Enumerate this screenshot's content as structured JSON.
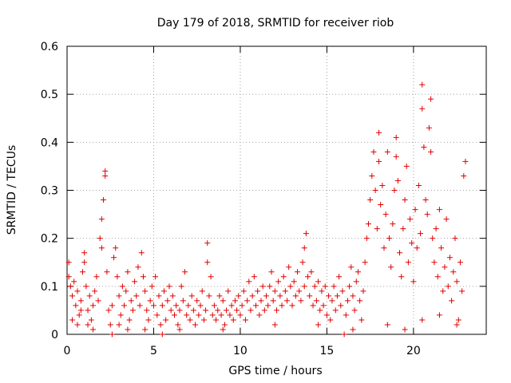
{
  "chart_data": {
    "type": "scatter",
    "title": "Day 179 of 2018, SRMTID for receiver riob",
    "xlabel": "GPS time / hours",
    "ylabel": "SRMTID / TECUs",
    "xlim": [
      0,
      24.2
    ],
    "ylim": [
      0,
      0.6
    ],
    "xticks": [
      0,
      5,
      10,
      15,
      20
    ],
    "yticks": [
      0,
      0.1,
      0.2,
      0.3,
      0.4,
      0.5,
      0.6
    ],
    "grid": true,
    "marker": "+",
    "color": "#e00000",
    "series": [
      {
        "name": "riob",
        "points": [
          [
            0.1,
            0.15
          ],
          [
            0.1,
            0.12
          ],
          [
            0.2,
            0.1
          ],
          [
            0.3,
            0.08
          ],
          [
            0.4,
            0.11
          ],
          [
            0.5,
            0.06
          ],
          [
            0.6,
            0.09
          ],
          [
            0.7,
            0.04
          ],
          [
            0.8,
            0.07
          ],
          [
            0.9,
            0.13
          ],
          [
            1.0,
            0.17
          ],
          [
            1.0,
            0.15
          ],
          [
            1.1,
            0.1
          ],
          [
            1.2,
            0.05
          ],
          [
            1.3,
            0.08
          ],
          [
            1.4,
            0.03
          ],
          [
            1.5,
            0.06
          ],
          [
            1.6,
            0.09
          ],
          [
            1.7,
            0.12
          ],
          [
            1.8,
            0.07
          ],
          [
            1.9,
            0.2
          ],
          [
            2.0,
            0.24
          ],
          [
            2.0,
            0.18
          ],
          [
            2.1,
            0.28
          ],
          [
            2.2,
            0.34
          ],
          [
            2.2,
            0.33
          ],
          [
            2.3,
            0.13
          ],
          [
            2.4,
            0.05
          ],
          [
            2.5,
            0.02
          ],
          [
            2.6,
            0.06
          ],
          [
            2.7,
            0.16
          ],
          [
            2.8,
            0.18
          ],
          [
            2.9,
            0.12
          ],
          [
            3.0,
            0.08
          ],
          [
            3.1,
            0.04
          ],
          [
            3.2,
            0.1
          ],
          [
            3.3,
            0.06
          ],
          [
            3.4,
            0.09
          ],
          [
            3.5,
            0.13
          ],
          [
            3.6,
            0.03
          ],
          [
            3.7,
            0.07
          ],
          [
            3.8,
            0.05
          ],
          [
            3.9,
            0.11
          ],
          [
            4.0,
            0.08
          ],
          [
            4.1,
            0.14
          ],
          [
            4.2,
            0.06
          ],
          [
            4.3,
            0.17
          ],
          [
            4.4,
            0.12
          ],
          [
            4.5,
            0.09
          ],
          [
            4.6,
            0.05
          ],
          [
            4.7,
            0.03
          ],
          [
            4.8,
            0.07
          ],
          [
            4.9,
            0.1
          ],
          [
            5.0,
            0.06
          ],
          [
            5.1,
            0.12
          ],
          [
            5.2,
            0.04
          ],
          [
            5.3,
            0.08
          ],
          [
            5.4,
            0.02
          ],
          [
            5.5,
            0.06
          ],
          [
            5.6,
            0.09
          ],
          [
            5.7,
            0.03
          ],
          [
            5.8,
            0.07
          ],
          [
            5.9,
            0.1
          ],
          [
            6.0,
            0.05
          ],
          [
            6.1,
            0.08
          ],
          [
            6.2,
            0.04
          ],
          [
            6.3,
            0.06
          ],
          [
            6.4,
            0.02
          ],
          [
            6.5,
            0.05
          ],
          [
            6.6,
            0.1
          ],
          [
            6.7,
            0.07
          ],
          [
            6.8,
            0.13
          ],
          [
            6.9,
            0.04
          ],
          [
            7.0,
            0.06
          ],
          [
            7.1,
            0.03
          ],
          [
            7.2,
            0.08
          ],
          [
            7.3,
            0.05
          ],
          [
            7.4,
            0.02
          ],
          [
            7.5,
            0.07
          ],
          [
            7.6,
            0.04
          ],
          [
            7.7,
            0.06
          ],
          [
            7.8,
            0.09
          ],
          [
            7.9,
            0.03
          ],
          [
            8.0,
            0.05
          ],
          [
            8.1,
            0.19
          ],
          [
            8.1,
            0.15
          ],
          [
            8.2,
            0.08
          ],
          [
            8.3,
            0.12
          ],
          [
            8.4,
            0.04
          ],
          [
            8.5,
            0.06
          ],
          [
            8.6,
            0.03
          ],
          [
            8.7,
            0.05
          ],
          [
            8.8,
            0.08
          ],
          [
            8.9,
            0.04
          ],
          [
            9.0,
            0.07
          ],
          [
            9.1,
            0.02
          ],
          [
            9.2,
            0.05
          ],
          [
            9.3,
            0.09
          ],
          [
            9.4,
            0.04
          ],
          [
            9.5,
            0.06
          ],
          [
            9.6,
            0.03
          ],
          [
            9.7,
            0.07
          ],
          [
            9.8,
            0.05
          ],
          [
            9.9,
            0.08
          ],
          [
            10.0,
            0.04
          ],
          [
            10.1,
            0.06
          ],
          [
            10.2,
            0.09
          ],
          [
            10.3,
            0.03
          ],
          [
            10.4,
            0.07
          ],
          [
            10.5,
            0.11
          ],
          [
            10.6,
            0.05
          ],
          [
            10.7,
            0.08
          ],
          [
            10.8,
            0.12
          ],
          [
            10.9,
            0.06
          ],
          [
            11.0,
            0.09
          ],
          [
            11.1,
            0.04
          ],
          [
            11.2,
            0.07
          ],
          [
            11.3,
            0.1
          ],
          [
            11.4,
            0.05
          ],
          [
            11.5,
            0.08
          ],
          [
            11.6,
            0.06
          ],
          [
            11.7,
            0.1
          ],
          [
            11.8,
            0.13
          ],
          [
            11.9,
            0.07
          ],
          [
            12.0,
            0.09
          ],
          [
            12.1,
            0.05
          ],
          [
            12.2,
            0.11
          ],
          [
            12.3,
            0.08
          ],
          [
            12.4,
            0.06
          ],
          [
            12.5,
            0.12
          ],
          [
            12.6,
            0.09
          ],
          [
            12.7,
            0.07
          ],
          [
            12.8,
            0.14
          ],
          [
            12.9,
            0.1
          ],
          [
            13.0,
            0.06
          ],
          [
            13.1,
            0.11
          ],
          [
            13.2,
            0.08
          ],
          [
            13.3,
            0.13
          ],
          [
            13.4,
            0.09
          ],
          [
            13.5,
            0.07
          ],
          [
            13.6,
            0.15
          ],
          [
            13.7,
            0.18
          ],
          [
            13.7,
            0.1
          ],
          [
            13.8,
            0.21
          ],
          [
            13.9,
            0.12
          ],
          [
            14.0,
            0.08
          ],
          [
            14.1,
            0.13
          ],
          [
            14.2,
            0.06
          ],
          [
            14.3,
            0.1
          ],
          [
            14.4,
            0.07
          ],
          [
            14.5,
            0.11
          ],
          [
            14.6,
            0.05
          ],
          [
            14.7,
            0.09
          ],
          [
            14.8,
            0.06
          ],
          [
            14.9,
            0.1
          ],
          [
            15.0,
            0.04
          ],
          [
            15.1,
            0.08
          ],
          [
            15.2,
            0.03
          ],
          [
            15.3,
            0.07
          ],
          [
            15.4,
            0.1
          ],
          [
            15.5,
            0.05
          ],
          [
            15.6,
            0.08
          ],
          [
            15.7,
            0.12
          ],
          [
            15.8,
            0.06
          ],
          [
            15.9,
            0.09
          ],
          [
            16.0,
            0.0
          ],
          [
            16.1,
            0.04
          ],
          [
            16.2,
            0.07
          ],
          [
            16.3,
            0.1
          ],
          [
            16.4,
            0.14
          ],
          [
            16.5,
            0.08
          ],
          [
            16.6,
            0.05
          ],
          [
            16.7,
            0.11
          ],
          [
            16.8,
            0.13
          ],
          [
            16.9,
            0.07
          ],
          [
            17.0,
            0.03
          ],
          [
            17.1,
            0.09
          ],
          [
            17.2,
            0.15
          ],
          [
            17.3,
            0.2
          ],
          [
            17.4,
            0.23
          ],
          [
            17.5,
            0.28
          ],
          [
            17.6,
            0.33
          ],
          [
            17.7,
            0.38
          ],
          [
            17.8,
            0.3
          ],
          [
            17.9,
            0.22
          ],
          [
            18.0,
            0.42
          ],
          [
            18.0,
            0.36
          ],
          [
            18.1,
            0.27
          ],
          [
            18.2,
            0.31
          ],
          [
            18.3,
            0.18
          ],
          [
            18.4,
            0.25
          ],
          [
            18.5,
            0.38
          ],
          [
            18.6,
            0.2
          ],
          [
            18.7,
            0.14
          ],
          [
            18.8,
            0.23
          ],
          [
            18.9,
            0.3
          ],
          [
            19.0,
            0.41
          ],
          [
            19.0,
            0.37
          ],
          [
            19.1,
            0.32
          ],
          [
            19.2,
            0.17
          ],
          [
            19.3,
            0.12
          ],
          [
            19.4,
            0.22
          ],
          [
            19.5,
            0.28
          ],
          [
            19.6,
            0.35
          ],
          [
            19.7,
            0.15
          ],
          [
            19.8,
            0.24
          ],
          [
            19.9,
            0.19
          ],
          [
            20.0,
            0.11
          ],
          [
            20.1,
            0.26
          ],
          [
            20.2,
            0.18
          ],
          [
            20.3,
            0.31
          ],
          [
            20.4,
            0.21
          ],
          [
            20.5,
            0.52
          ],
          [
            20.5,
            0.47
          ],
          [
            20.6,
            0.39
          ],
          [
            20.7,
            0.28
          ],
          [
            20.8,
            0.25
          ],
          [
            20.9,
            0.43
          ],
          [
            21.0,
            0.49
          ],
          [
            21.0,
            0.38
          ],
          [
            21.1,
            0.2
          ],
          [
            21.2,
            0.15
          ],
          [
            21.3,
            0.22
          ],
          [
            21.4,
            0.12
          ],
          [
            21.5,
            0.26
          ],
          [
            21.6,
            0.18
          ],
          [
            21.7,
            0.09
          ],
          [
            21.8,
            0.14
          ],
          [
            21.9,
            0.24
          ],
          [
            22.0,
            0.1
          ],
          [
            22.1,
            0.16
          ],
          [
            22.2,
            0.07
          ],
          [
            22.3,
            0.13
          ],
          [
            22.4,
            0.2
          ],
          [
            22.5,
            0.11
          ],
          [
            22.6,
            0.03
          ],
          [
            22.7,
            0.15
          ],
          [
            22.8,
            0.09
          ],
          [
            22.9,
            0.33
          ],
          [
            23.0,
            0.36
          ],
          [
            0.3,
            0.03
          ],
          [
            0.6,
            0.02
          ],
          [
            1.5,
            0.01
          ],
          [
            2.6,
            0.0
          ],
          [
            3.5,
            0.01
          ],
          [
            5.5,
            0.0
          ],
          [
            6.5,
            0.01
          ],
          [
            9.0,
            0.01
          ],
          [
            12.0,
            0.02
          ],
          [
            14.5,
            0.02
          ],
          [
            16.5,
            0.01
          ],
          [
            18.5,
            0.02
          ],
          [
            19.5,
            0.01
          ],
          [
            20.5,
            0.03
          ],
          [
            21.5,
            0.04
          ],
          [
            22.5,
            0.02
          ],
          [
            0.8,
            0.05
          ],
          [
            1.2,
            0.02
          ],
          [
            3.0,
            0.02
          ],
          [
            4.5,
            0.01
          ]
        ]
      }
    ]
  }
}
